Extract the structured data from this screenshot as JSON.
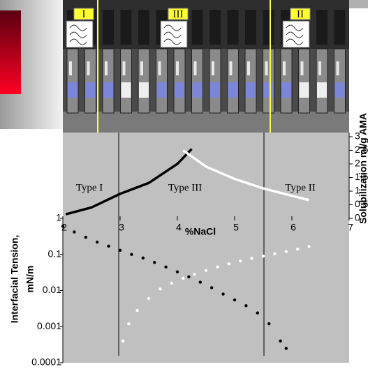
{
  "photo": {
    "labels": [
      "I",
      "III",
      "II"
    ]
  },
  "chart_data": [
    {
      "type": "line",
      "annotations": [
        "Type I",
        "Type III",
        "Type II"
      ],
      "xlabel": "%NaCl",
      "ylabel": "Solubilization ml/g AMA",
      "xlim": [
        2,
        7
      ],
      "xticks": [
        2,
        3,
        4,
        5,
        6,
        7
      ],
      "ylim": [
        0,
        3
      ],
      "yticks": [
        0,
        0.5,
        1,
        1.5,
        2,
        2.5,
        3
      ],
      "series": [
        {
          "color": "#000000",
          "x": [
            2.05,
            2.5,
            3,
            3.5,
            4,
            4.25
          ],
          "values": [
            0.15,
            0.4,
            0.9,
            1.3,
            2.0,
            2.55
          ]
        },
        {
          "color": "#ffffff",
          "x": [
            4.1,
            4.5,
            5,
            5.5,
            6.3
          ],
          "values": [
            2.5,
            1.9,
            1.45,
            1.1,
            0.67
          ]
        }
      ]
    },
    {
      "type": "scatter",
      "ylabel": [
        "Interfacial Tension,",
        "mN/m"
      ],
      "xlim": [
        2,
        7
      ],
      "ylim": [
        0.0001,
        1
      ],
      "yticks": [
        1,
        0.1,
        0.01,
        0.001,
        0.0001
      ],
      "log_y": true,
      "series": [
        {
          "color": "#000000",
          "x": [
            2.0,
            2.2,
            2.4,
            2.6,
            2.8,
            3.0,
            3.2,
            3.4,
            3.6,
            3.8,
            4.0,
            4.2,
            4.4,
            4.6,
            4.8,
            5.0,
            5.2,
            5.4,
            5.6,
            5.8,
            5.9
          ],
          "values": [
            0.6,
            0.42,
            0.3,
            0.22,
            0.17,
            0.13,
            0.1,
            0.08,
            0.06,
            0.045,
            0.033,
            0.024,
            0.017,
            0.012,
            0.008,
            0.0055,
            0.0038,
            0.0024,
            0.0012,
            0.0004,
            0.00025
          ]
        },
        {
          "color": "#ffffff",
          "x": [
            3.05,
            3.15,
            3.3,
            3.5,
            3.7,
            3.9,
            4.1,
            4.3,
            4.5,
            4.7,
            4.9,
            5.1,
            5.3,
            5.5,
            5.7,
            5.9,
            6.1,
            6.3
          ],
          "values": [
            0.0004,
            0.0012,
            0.0028,
            0.006,
            0.011,
            0.016,
            0.022,
            0.028,
            0.036,
            0.045,
            0.055,
            0.066,
            0.078,
            0.09,
            0.105,
            0.12,
            0.14,
            0.165
          ]
        }
      ]
    }
  ]
}
